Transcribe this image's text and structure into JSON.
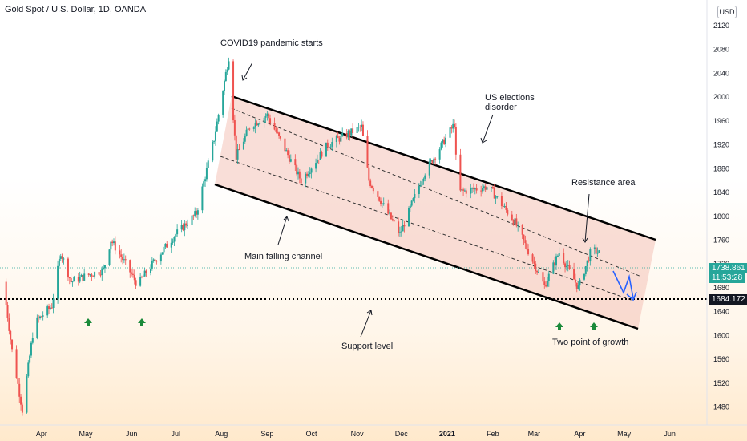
{
  "header": {
    "symbol_text": "Gold Spot / U.S. Dollar, 1D, OANDA",
    "currency": "USD"
  },
  "price": {
    "last": "1738.861",
    "countdown": "11:53:28",
    "support_value": "1684.172"
  },
  "annotations": {
    "covid": "COVID19 pandemic starts",
    "elections_1": "US elections",
    "elections_2": "disorder",
    "resistance": "Resistance area",
    "channel": "Main falling channel",
    "support": "Support level",
    "growth": "Two point of growth"
  },
  "chart_data": {
    "type": "candlestick",
    "title": "Gold Spot / U.S. Dollar, 1D, OANDA",
    "ylim": [
      1470,
      2150
    ],
    "y_ticks": [
      1480,
      1520,
      1560,
      1600,
      1640,
      1680,
      1720,
      1760,
      1800,
      1840,
      1880,
      1920,
      1960,
      2000,
      2040,
      2080,
      2120
    ],
    "x_ticks": [
      "Apr",
      "May",
      "Jun",
      "Jul",
      "Aug",
      "Sep",
      "Oct",
      "Nov",
      "Dec",
      "2021",
      "Feb",
      "Mar",
      "Apr",
      "May",
      "Jun"
    ],
    "series": [
      {
        "name": "price path",
        "points": [
          [
            "2020-03-06",
            1690
          ],
          [
            "2020-03-12",
            1575
          ],
          [
            "2020-03-19",
            1475
          ],
          [
            "2020-03-27",
            1620
          ],
          [
            "2020-04-08",
            1650
          ],
          [
            "2020-04-14",
            1740
          ],
          [
            "2020-04-21",
            1690
          ],
          [
            "2020-05-01",
            1700
          ],
          [
            "2020-05-13",
            1710
          ],
          [
            "2020-05-18",
            1760
          ],
          [
            "2020-05-28",
            1720
          ],
          [
            "2020-06-05",
            1685
          ],
          [
            "2020-06-18",
            1730
          ],
          [
            "2020-07-01",
            1770
          ],
          [
            "2020-07-15",
            1805
          ],
          [
            "2020-07-27",
            1930
          ],
          [
            "2020-08-06",
            2067
          ],
          [
            "2020-08-11",
            1900
          ],
          [
            "2020-08-20",
            1950
          ],
          [
            "2020-09-01",
            1970
          ],
          [
            "2020-09-24",
            1860
          ],
          [
            "2020-10-12",
            1920
          ],
          [
            "2020-11-04",
            1950
          ],
          [
            "2020-11-09",
            1860
          ],
          [
            "2020-11-30",
            1770
          ],
          [
            "2020-12-16",
            1870
          ],
          [
            "2021-01-06",
            1955
          ],
          [
            "2021-01-08",
            1840
          ],
          [
            "2021-01-29",
            1850
          ],
          [
            "2021-02-16",
            1790
          ],
          [
            "2021-03-08",
            1683
          ],
          [
            "2021-03-18",
            1740
          ],
          [
            "2021-03-31",
            1680
          ],
          [
            "2021-04-09",
            1745
          ],
          [
            "2021-04-14",
            1738
          ]
        ]
      }
    ],
    "channel": {
      "upper": [
        [
          "2020-08-06",
          2030
        ],
        [
          "2021-05-01",
          1790
        ]
      ],
      "lower": [
        [
          "2020-08-06",
          1880
        ],
        [
          "2021-05-01",
          1637
        ]
      ]
    },
    "support_level": 1684.172,
    "current_price": 1738.861
  }
}
